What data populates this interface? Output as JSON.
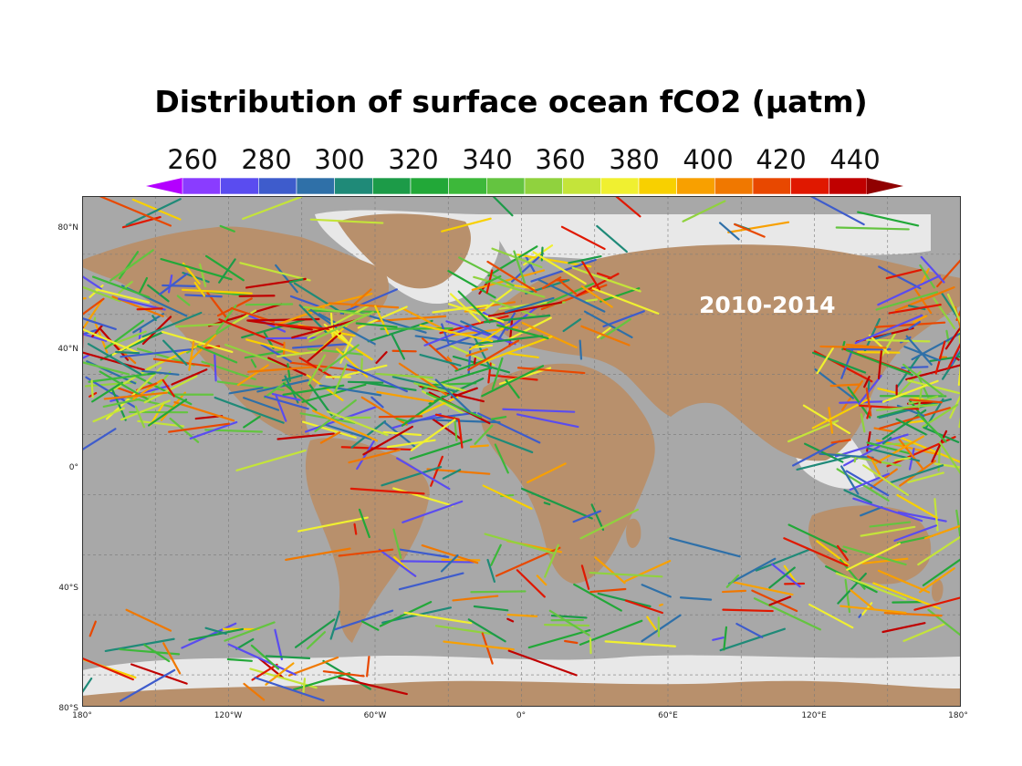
{
  "title": "Distribution of surface ocean fCO2 (μatm)",
  "period_label": "2010-2014",
  "colorbar": {
    "labels": [
      "260",
      "280",
      "300",
      "320",
      "340",
      "360",
      "380",
      "400",
      "420",
      "440"
    ],
    "min": 250,
    "max": 450,
    "step": 10,
    "colors": [
      "#b400ff",
      "#8a3cff",
      "#5a4cf0",
      "#3e5ccc",
      "#2f70a8",
      "#1f8a78",
      "#1c9b48",
      "#22a838",
      "#3db83a",
      "#64c440",
      "#90d23e",
      "#c4e43a",
      "#f0f030",
      "#f8d000",
      "#f8a000",
      "#f07800",
      "#e84800",
      "#e01800",
      "#c00000",
      "#900000"
    ]
  },
  "axes": {
    "lat_labels": [
      "80°N",
      "40°N",
      "0°",
      "40°S",
      "80°S"
    ],
    "lon_labels": [
      "180°",
      "120°W",
      "60°W",
      "0°",
      "60°E",
      "120°E",
      "180°"
    ]
  },
  "colors": {
    "land": "#b8906c",
    "ocean": "#a8a8a8",
    "shelf": "#e8e8e8",
    "grid": "#7a7a7a"
  }
}
